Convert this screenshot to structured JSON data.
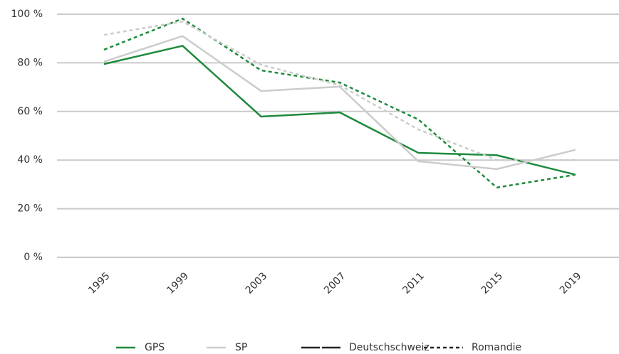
{
  "chart_data": {
    "type": "line",
    "categories": [
      "1995",
      "1999",
      "2003",
      "2007",
      "2011",
      "2015",
      "2019"
    ],
    "ylim": [
      0,
      100
    ],
    "yticks": [
      {
        "value": 0,
        "label": "0 %"
      },
      {
        "value": 20,
        "label": "20 %"
      },
      {
        "value": 40,
        "label": "40 %"
      },
      {
        "value": 60,
        "label": "60 %"
      },
      {
        "value": 80,
        "label": "80 %"
      },
      {
        "value": 100,
        "label": "100 %"
      }
    ],
    "grid": true,
    "line_styles": [
      {
        "name": "Deutschschweiz",
        "dash": "none"
      },
      {
        "name": "Romandie",
        "dash": "5 4"
      }
    ],
    "series": [
      {
        "name": "GPS",
        "color": "#1e8a3c",
        "lines": [
          [
            79.5,
            87,
            57.9,
            59.6,
            43,
            42,
            34
          ],
          [
            85.4,
            98.2,
            76.9,
            71.9,
            56.7,
            28.7,
            34
          ]
        ]
      },
      {
        "name": "SP",
        "color": "#cccccc",
        "lines": [
          [
            80.5,
            91,
            68.4,
            70.2,
            39.5,
            36.3,
            44.2
          ],
          [
            91.5,
            97,
            79.2,
            70.8,
            52.6,
            40,
            40
          ]
        ]
      }
    ]
  }
}
